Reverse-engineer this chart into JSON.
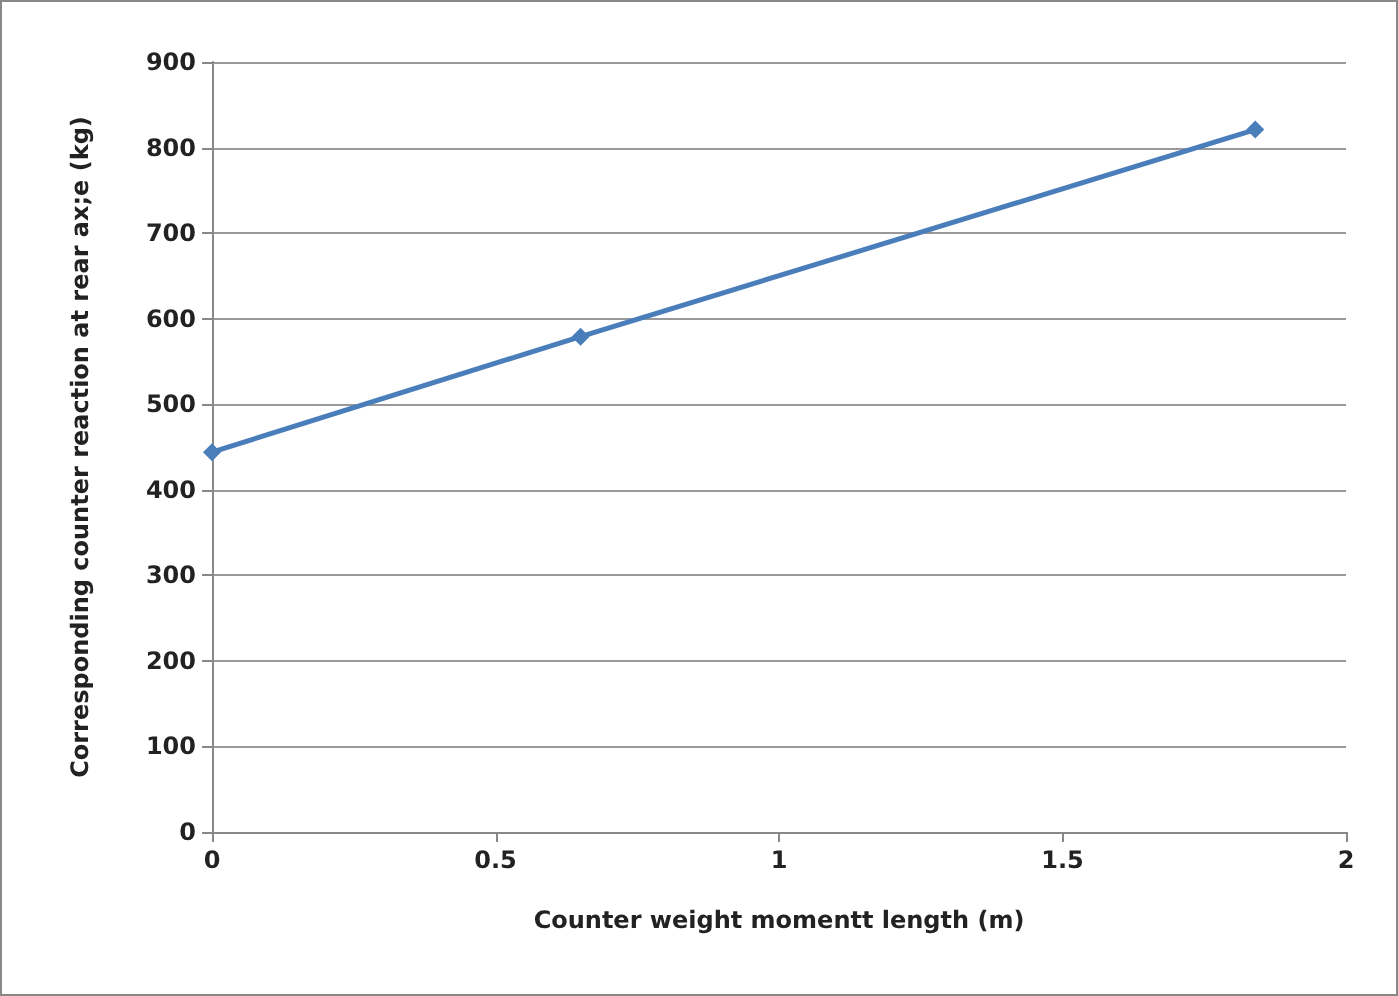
{
  "chart_data": {
    "type": "line",
    "xlabel": "Counter weight momentt length (m)",
    "ylabel": "Corresponding counter reaction at rear ax;e (kg)",
    "x": [
      0,
      0.65,
      1.84
    ],
    "series": [
      {
        "color": "#4a7ebb",
        "values": [
          444,
          579,
          821
        ]
      }
    ],
    "xlim": [
      0,
      2
    ],
    "xticks": [
      0,
      0.5,
      1,
      1.5,
      2
    ],
    "ylim": [
      0,
      900
    ],
    "yticks": [
      0,
      100,
      200,
      300,
      400,
      500,
      600,
      700,
      800,
      900
    ],
    "grid": "y",
    "marker": "diamond",
    "line_style": "solid"
  }
}
